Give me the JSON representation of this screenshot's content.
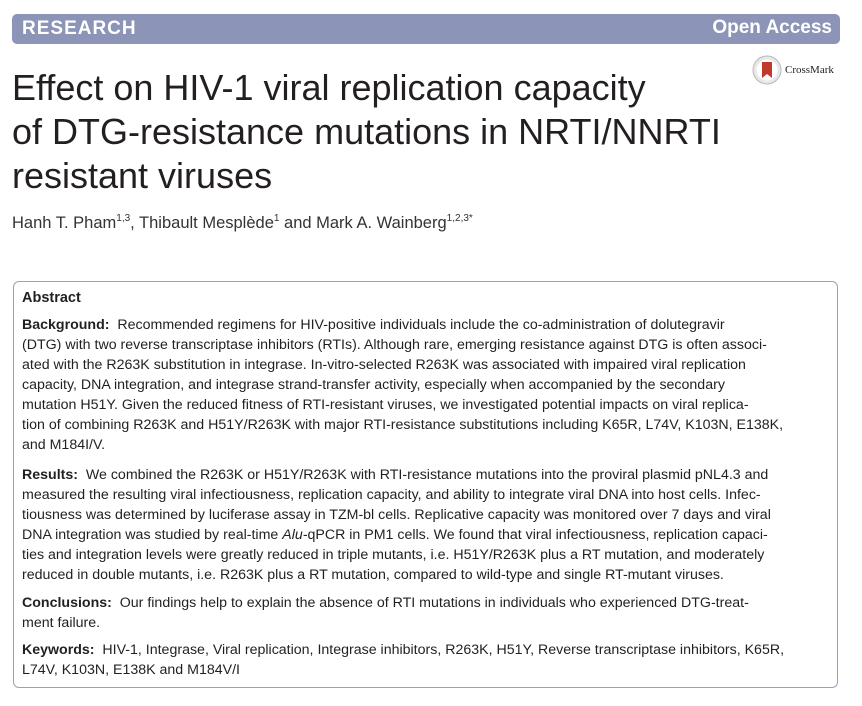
{
  "header": {
    "research_label": "RESEARCH",
    "open_access_label": "Open Access"
  },
  "crossmark": {
    "label": "CrossMark"
  },
  "title_lines": [
    "Effect on HIV-1 viral replication capacity",
    "of DTG-resistance mutations in NRTI/NNRTI",
    "resistant viruses"
  ],
  "authors": [
    {
      "name": "Hanh T. Pham",
      "affil": "1,3",
      "after": ", "
    },
    {
      "name": "Thibault Mesplède",
      "affil": "1",
      "after": " and "
    },
    {
      "name": "Mark A. Wainberg",
      "affil": "1,2,3*",
      "after": ""
    }
  ],
  "abstract": {
    "heading": "Abstract",
    "background": {
      "label": "Background:",
      "lines": [
        "Recommended regimens for HIV-positive individuals include the co-administration of dolutegravir",
        "(DTG) with two reverse transcriptase inhibitors (RTIs). Although rare, emerging resistance against DTG is often associ-",
        "ated with the R263K substitution in integrase. In-vitro-selected R263K was associated with impaired viral replication",
        "capacity, DNA integration, and integrase strand-transfer activity, especially when accompanied by the secondary",
        "mutation H51Y. Given the reduced fitness of RTI-resistant viruses, we investigated potential impacts on viral replica-",
        "tion of combining R263K and H51Y/R263K with major RTI-resistance substitutions including K65R, L74V, K103N, E138K,",
        "and M184I/V."
      ]
    },
    "results": {
      "label": "Results:",
      "lines": [
        "We combined the R263K or H51Y/R263K with RTI-resistance mutations into the proviral plasmid pNL4.3 and",
        "measured the resulting viral infectiousness, replication capacity, and ability to integrate viral DNA into host cells. Infec-",
        "tiousness was determined by luciferase assay in TZM-bl cells. Replicative capacity was monitored over 7 days and viral",
        "DNA integration was studied by real-time ",
        "qPCR in PM1 cells. We found that viral infectiousness, replication capaci-",
        "ties and integration levels were greatly reduced in triple mutants, i.e. H51Y/R263K plus a RT mutation, and moderately",
        "reduced in double mutants, i.e. R263K plus a RT mutation, compared to wild-type and single RT-mutant viruses."
      ],
      "italic_alu": "Alu-"
    },
    "conclusions": {
      "label": "Conclusions:",
      "lines": [
        "Our findings help to explain the absence of RTI mutations in individuals who experienced DTG-treat-",
        "ment failure."
      ]
    },
    "keywords": {
      "label": "Keywords:",
      "lines": [
        "HIV-1, Integrase, Viral replication, Integrase inhibitors, R263K, H51Y, Reverse transcriptase inhibitors, K65R,",
        "L74V, K103N, E138K and M184V/I"
      ]
    }
  }
}
